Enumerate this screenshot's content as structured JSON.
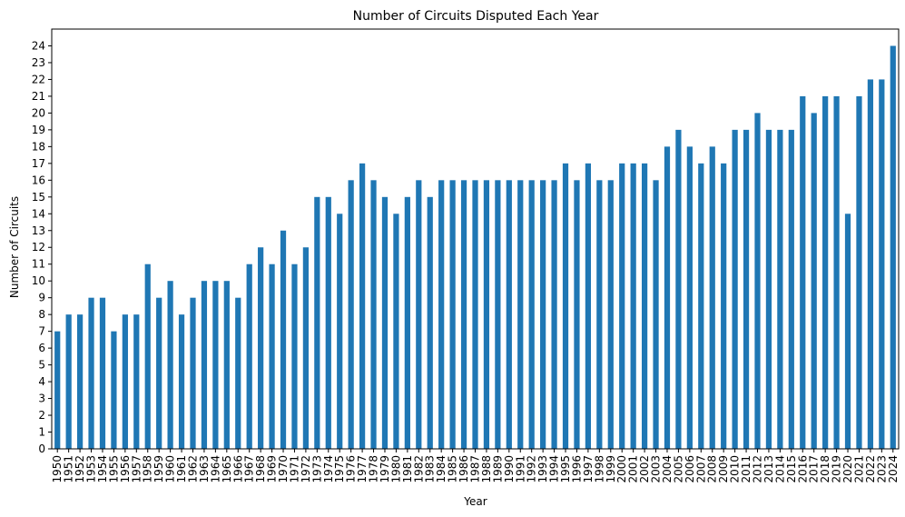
{
  "chart_data": {
    "type": "bar",
    "title": "Number of Circuits Disputed Each Year",
    "xlabel": "Year",
    "ylabel": "Number of Circuits",
    "ylim": [
      0,
      25
    ],
    "yticks": [
      0,
      1,
      2,
      3,
      4,
      5,
      6,
      7,
      8,
      9,
      10,
      11,
      12,
      13,
      14,
      15,
      16,
      17,
      18,
      19,
      20,
      21,
      22,
      23,
      24
    ],
    "grid": false,
    "legend": "none",
    "bar_color": "#1f77b4",
    "categories": [
      "1950",
      "1951",
      "1952",
      "1953",
      "1954",
      "1955",
      "1956",
      "1957",
      "1958",
      "1959",
      "1960",
      "1961",
      "1962",
      "1963",
      "1964",
      "1965",
      "1966",
      "1967",
      "1968",
      "1969",
      "1970",
      "1971",
      "1972",
      "1973",
      "1974",
      "1975",
      "1976",
      "1977",
      "1978",
      "1979",
      "1980",
      "1981",
      "1982",
      "1983",
      "1984",
      "1985",
      "1986",
      "1987",
      "1988",
      "1989",
      "1990",
      "1991",
      "1992",
      "1993",
      "1994",
      "1995",
      "1996",
      "1997",
      "1998",
      "1999",
      "2000",
      "2001",
      "2002",
      "2003",
      "2004",
      "2005",
      "2006",
      "2007",
      "2008",
      "2009",
      "2010",
      "2011",
      "2012",
      "2013",
      "2014",
      "2015",
      "2016",
      "2017",
      "2018",
      "2019",
      "2020",
      "2021",
      "2022",
      "2023",
      "2024"
    ],
    "values": [
      7,
      8,
      8,
      9,
      9,
      7,
      8,
      8,
      11,
      9,
      10,
      8,
      9,
      10,
      10,
      10,
      9,
      11,
      12,
      11,
      13,
      11,
      12,
      15,
      15,
      14,
      16,
      17,
      16,
      15,
      14,
      15,
      16,
      15,
      16,
      16,
      16,
      16,
      16,
      16,
      16,
      16,
      16,
      16,
      16,
      17,
      16,
      17,
      16,
      16,
      17,
      17,
      17,
      16,
      18,
      19,
      18,
      17,
      18,
      17,
      19,
      19,
      20,
      19,
      19,
      19,
      21,
      20,
      21,
      21,
      14,
      21,
      22,
      22,
      24
    ]
  }
}
